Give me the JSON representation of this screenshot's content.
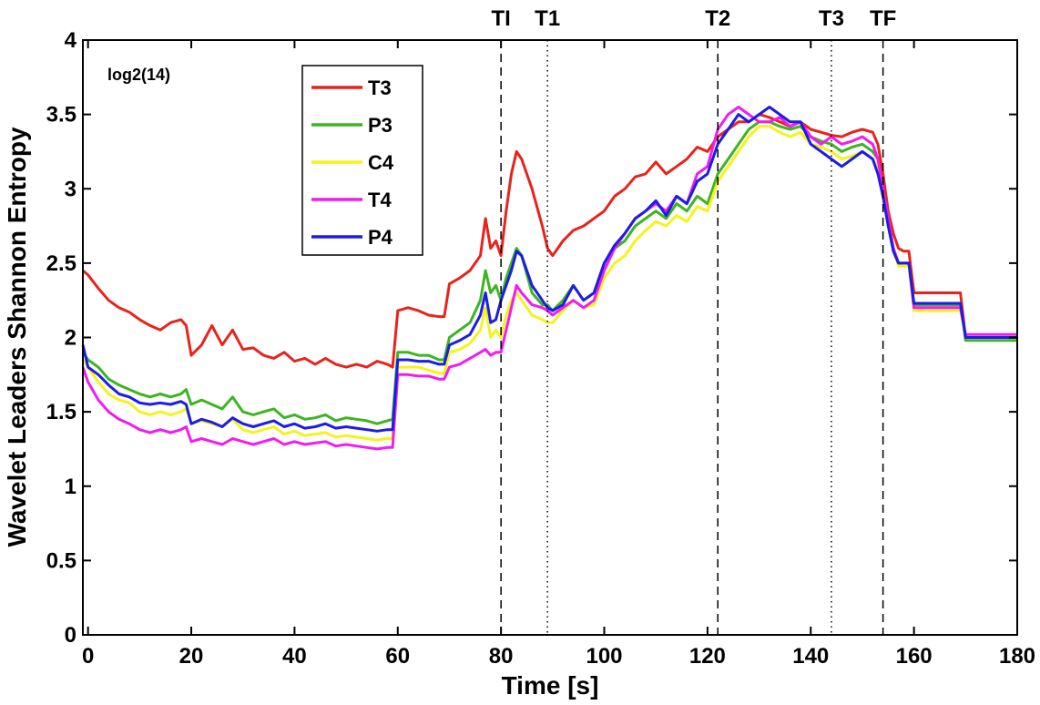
{
  "chart_data": {
    "type": "line",
    "xlabel": "Time [s]",
    "ylabel": "Wavelet Leaders Shannon Entropy",
    "xlim": [
      -1,
      180
    ],
    "ylim": [
      0,
      4
    ],
    "xticks": [
      0,
      20,
      40,
      60,
      80,
      100,
      120,
      140,
      160,
      180
    ],
    "yticks": [
      0,
      0.5,
      1,
      1.5,
      2,
      2.5,
      3,
      3.5,
      4
    ],
    "grid": false,
    "legend_position": "top-left",
    "annotation": "log2(14)",
    "vertical_markers": [
      {
        "label": "TI",
        "x": 80,
        "style": "dashed"
      },
      {
        "label": "T1",
        "x": 89,
        "style": "dotted"
      },
      {
        "label": "T2",
        "x": 122,
        "style": "dashed"
      },
      {
        "label": "T3",
        "x": 144,
        "style": "dotted"
      },
      {
        "label": "TF",
        "x": 154,
        "style": "dashed"
      }
    ],
    "series": [
      {
        "name": "T3",
        "color": "#e8231c",
        "x": [
          -1,
          0,
          2,
          4,
          6,
          8,
          10,
          12,
          14,
          16,
          18,
          19,
          20,
          22,
          24,
          26,
          28,
          30,
          32,
          34,
          36,
          38,
          40,
          42,
          44,
          46,
          48,
          50,
          52,
          54,
          56,
          58,
          59,
          60,
          62,
          64,
          66,
          68,
          69,
          70,
          72,
          74,
          76,
          77,
          78,
          79,
          80,
          81,
          82,
          83,
          84,
          86,
          88,
          89,
          90,
          92,
          94,
          96,
          98,
          100,
          102,
          104,
          106,
          108,
          110,
          112,
          114,
          116,
          118,
          120,
          122,
          124,
          126,
          128,
          130,
          132,
          134,
          136,
          138,
          140,
          142,
          144,
          146,
          148,
          150,
          152,
          153,
          154,
          155,
          156,
          157,
          158,
          159,
          160,
          162,
          164,
          166,
          168,
          169,
          170,
          172,
          174,
          176,
          178,
          180
        ],
        "y": [
          2.45,
          2.42,
          2.33,
          2.25,
          2.2,
          2.17,
          2.12,
          2.08,
          2.05,
          2.1,
          2.12,
          2.08,
          1.88,
          1.95,
          2.08,
          1.95,
          2.05,
          1.92,
          1.93,
          1.88,
          1.86,
          1.9,
          1.84,
          1.86,
          1.82,
          1.86,
          1.82,
          1.8,
          1.82,
          1.8,
          1.84,
          1.82,
          1.8,
          2.18,
          2.2,
          2.18,
          2.15,
          2.14,
          2.14,
          2.36,
          2.4,
          2.45,
          2.55,
          2.8,
          2.6,
          2.65,
          2.55,
          2.85,
          3.1,
          3.25,
          3.2,
          3.0,
          2.75,
          2.6,
          2.55,
          2.65,
          2.72,
          2.75,
          2.8,
          2.85,
          2.95,
          3.0,
          3.08,
          3.1,
          3.18,
          3.1,
          3.15,
          3.2,
          3.28,
          3.25,
          3.35,
          3.4,
          3.45,
          3.45,
          3.5,
          3.48,
          3.45,
          3.42,
          3.45,
          3.4,
          3.38,
          3.36,
          3.35,
          3.38,
          3.4,
          3.38,
          3.3,
          3.1,
          2.85,
          2.7,
          2.6,
          2.58,
          2.58,
          2.3,
          2.3,
          2.3,
          2.3,
          2.3,
          2.3,
          2.0,
          2.0,
          2.0,
          2.0,
          2.0,
          2.0
        ]
      },
      {
        "name": "P3",
        "color": "#3cb521",
        "x": [
          -1,
          0,
          2,
          4,
          6,
          8,
          10,
          12,
          14,
          16,
          18,
          19,
          20,
          22,
          24,
          26,
          28,
          30,
          32,
          34,
          36,
          38,
          40,
          42,
          44,
          46,
          48,
          50,
          52,
          54,
          56,
          58,
          59,
          60,
          62,
          64,
          66,
          68,
          69,
          70,
          72,
          74,
          76,
          77,
          78,
          79,
          80,
          81,
          82,
          83,
          84,
          86,
          88,
          89,
          90,
          92,
          94,
          96,
          98,
          100,
          102,
          104,
          106,
          108,
          110,
          112,
          114,
          116,
          118,
          120,
          122,
          124,
          126,
          128,
          130,
          132,
          134,
          136,
          138,
          140,
          142,
          144,
          146,
          148,
          150,
          152,
          153,
          154,
          155,
          156,
          157,
          158,
          159,
          160,
          162,
          164,
          166,
          168,
          169,
          170,
          172,
          174,
          176,
          178,
          180
        ],
        "y": [
          1.9,
          1.85,
          1.8,
          1.72,
          1.68,
          1.65,
          1.62,
          1.6,
          1.62,
          1.6,
          1.62,
          1.65,
          1.55,
          1.58,
          1.55,
          1.52,
          1.6,
          1.5,
          1.48,
          1.5,
          1.52,
          1.46,
          1.48,
          1.45,
          1.46,
          1.48,
          1.44,
          1.46,
          1.45,
          1.44,
          1.42,
          1.44,
          1.45,
          1.9,
          1.9,
          1.88,
          1.88,
          1.85,
          1.85,
          2.0,
          2.05,
          2.1,
          2.25,
          2.45,
          2.3,
          2.35,
          2.25,
          2.4,
          2.5,
          2.6,
          2.55,
          2.3,
          2.22,
          2.22,
          2.18,
          2.25,
          2.35,
          2.25,
          2.3,
          2.5,
          2.6,
          2.65,
          2.75,
          2.8,
          2.85,
          2.8,
          2.9,
          2.85,
          2.95,
          2.9,
          3.1,
          3.2,
          3.3,
          3.4,
          3.45,
          3.45,
          3.42,
          3.4,
          3.42,
          3.35,
          3.32,
          3.3,
          3.25,
          3.28,
          3.3,
          3.25,
          3.2,
          3.0,
          2.8,
          2.6,
          2.5,
          2.5,
          2.5,
          2.22,
          2.22,
          2.22,
          2.22,
          2.22,
          2.22,
          1.98,
          1.98,
          1.98,
          1.98,
          1.98,
          1.98
        ]
      },
      {
        "name": "C4",
        "color": "#f5f21c",
        "x": [
          -1,
          0,
          2,
          4,
          6,
          8,
          10,
          12,
          14,
          16,
          18,
          19,
          20,
          22,
          24,
          26,
          28,
          30,
          32,
          34,
          36,
          38,
          40,
          42,
          44,
          46,
          48,
          50,
          52,
          54,
          56,
          58,
          59,
          60,
          62,
          64,
          66,
          68,
          69,
          70,
          72,
          74,
          76,
          77,
          78,
          79,
          80,
          81,
          82,
          83,
          84,
          86,
          88,
          89,
          90,
          92,
          94,
          96,
          98,
          100,
          102,
          104,
          106,
          108,
          110,
          112,
          114,
          116,
          118,
          120,
          122,
          124,
          126,
          128,
          130,
          132,
          134,
          136,
          138,
          140,
          142,
          144,
          146,
          148,
          150,
          152,
          153,
          154,
          155,
          156,
          157,
          158,
          159,
          160,
          162,
          164,
          166,
          168,
          169,
          170,
          172,
          174,
          176,
          178,
          180
        ],
        "y": [
          1.85,
          1.8,
          1.7,
          1.62,
          1.58,
          1.56,
          1.5,
          1.48,
          1.5,
          1.48,
          1.5,
          1.52,
          1.42,
          1.44,
          1.42,
          1.4,
          1.45,
          1.38,
          1.36,
          1.38,
          1.4,
          1.35,
          1.37,
          1.34,
          1.35,
          1.36,
          1.33,
          1.34,
          1.33,
          1.32,
          1.31,
          1.32,
          1.32,
          1.8,
          1.8,
          1.8,
          1.78,
          1.76,
          1.76,
          1.9,
          1.92,
          1.96,
          2.05,
          2.2,
          2.0,
          2.05,
          2.0,
          2.15,
          2.25,
          2.3,
          2.25,
          2.15,
          2.12,
          2.1,
          2.1,
          2.18,
          2.25,
          2.2,
          2.22,
          2.4,
          2.5,
          2.55,
          2.65,
          2.72,
          2.78,
          2.75,
          2.82,
          2.78,
          2.88,
          2.85,
          3.05,
          3.15,
          3.25,
          3.35,
          3.42,
          3.42,
          3.38,
          3.35,
          3.38,
          3.3,
          3.28,
          3.25,
          3.2,
          3.22,
          3.25,
          3.2,
          3.15,
          2.95,
          2.75,
          2.58,
          2.48,
          2.48,
          2.48,
          2.18,
          2.18,
          2.18,
          2.18,
          2.18,
          2.18,
          2.0,
          2.0,
          2.0,
          2.0,
          2.0,
          2.0
        ]
      },
      {
        "name": "T4",
        "color": "#f01cf0",
        "x": [
          -1,
          0,
          2,
          4,
          6,
          8,
          10,
          12,
          14,
          16,
          18,
          19,
          20,
          22,
          24,
          26,
          28,
          30,
          32,
          34,
          36,
          38,
          40,
          42,
          44,
          46,
          48,
          50,
          52,
          54,
          56,
          58,
          59,
          60,
          62,
          64,
          66,
          68,
          69,
          70,
          72,
          74,
          76,
          77,
          78,
          79,
          80,
          81,
          82,
          83,
          84,
          86,
          88,
          89,
          90,
          92,
          94,
          96,
          98,
          100,
          102,
          104,
          106,
          108,
          110,
          112,
          114,
          116,
          118,
          120,
          122,
          124,
          126,
          128,
          130,
          132,
          134,
          136,
          138,
          140,
          142,
          144,
          146,
          148,
          150,
          152,
          153,
          154,
          155,
          156,
          157,
          158,
          159,
          160,
          162,
          164,
          166,
          168,
          169,
          170,
          172,
          174,
          176,
          178,
          180
        ],
        "y": [
          1.8,
          1.7,
          1.58,
          1.5,
          1.45,
          1.42,
          1.38,
          1.36,
          1.38,
          1.36,
          1.38,
          1.4,
          1.3,
          1.32,
          1.3,
          1.28,
          1.32,
          1.3,
          1.28,
          1.3,
          1.32,
          1.28,
          1.3,
          1.28,
          1.29,
          1.3,
          1.27,
          1.28,
          1.27,
          1.26,
          1.25,
          1.26,
          1.26,
          1.75,
          1.75,
          1.74,
          1.74,
          1.72,
          1.72,
          1.8,
          1.82,
          1.86,
          1.9,
          1.92,
          1.88,
          1.9,
          1.9,
          2.05,
          2.2,
          2.35,
          2.3,
          2.22,
          2.2,
          2.18,
          2.15,
          2.2,
          2.25,
          2.2,
          2.25,
          2.45,
          2.6,
          2.7,
          2.8,
          2.85,
          2.9,
          2.85,
          2.95,
          2.9,
          3.1,
          3.15,
          3.4,
          3.5,
          3.55,
          3.5,
          3.45,
          3.45,
          3.48,
          3.42,
          3.45,
          3.35,
          3.3,
          3.35,
          3.3,
          3.32,
          3.35,
          3.3,
          3.2,
          3.0,
          2.8,
          2.6,
          2.5,
          2.5,
          2.5,
          2.2,
          2.2,
          2.2,
          2.2,
          2.2,
          2.2,
          2.02,
          2.02,
          2.02,
          2.02,
          2.02,
          2.02
        ]
      },
      {
        "name": "P4",
        "color": "#1c1ce8",
        "x": [
          -1,
          0,
          2,
          4,
          6,
          8,
          10,
          12,
          14,
          16,
          18,
          19,
          20,
          22,
          24,
          26,
          28,
          30,
          32,
          34,
          36,
          38,
          40,
          42,
          44,
          46,
          48,
          50,
          52,
          54,
          56,
          58,
          59,
          60,
          62,
          64,
          66,
          68,
          69,
          70,
          72,
          74,
          76,
          77,
          78,
          79,
          80,
          81,
          82,
          83,
          84,
          86,
          88,
          89,
          90,
          92,
          94,
          96,
          98,
          100,
          102,
          104,
          106,
          108,
          110,
          112,
          114,
          116,
          118,
          120,
          122,
          124,
          126,
          128,
          130,
          132,
          134,
          136,
          138,
          140,
          142,
          144,
          146,
          148,
          150,
          152,
          153,
          154,
          155,
          156,
          157,
          158,
          159,
          160,
          162,
          164,
          166,
          168,
          169,
          170,
          172,
          174,
          176,
          178,
          180
        ],
        "y": [
          1.95,
          1.8,
          1.75,
          1.68,
          1.62,
          1.6,
          1.56,
          1.55,
          1.56,
          1.55,
          1.57,
          1.55,
          1.42,
          1.45,
          1.43,
          1.4,
          1.46,
          1.42,
          1.4,
          1.42,
          1.44,
          1.4,
          1.42,
          1.39,
          1.4,
          1.42,
          1.39,
          1.4,
          1.39,
          1.38,
          1.37,
          1.38,
          1.38,
          1.85,
          1.85,
          1.84,
          1.84,
          1.82,
          1.82,
          1.95,
          1.98,
          2.02,
          2.15,
          2.3,
          2.1,
          2.12,
          2.25,
          2.35,
          2.45,
          2.58,
          2.55,
          2.35,
          2.25,
          2.2,
          2.18,
          2.22,
          2.35,
          2.25,
          2.3,
          2.5,
          2.62,
          2.7,
          2.8,
          2.85,
          2.92,
          2.82,
          2.95,
          2.9,
          3.05,
          3.1,
          3.3,
          3.4,
          3.5,
          3.45,
          3.5,
          3.55,
          3.5,
          3.45,
          3.45,
          3.3,
          3.25,
          3.2,
          3.15,
          3.2,
          3.25,
          3.2,
          3.1,
          2.95,
          2.75,
          2.58,
          2.5,
          2.5,
          2.5,
          2.23,
          2.23,
          2.23,
          2.23,
          2.23,
          2.23,
          2.0,
          2.0,
          2.0,
          2.0,
          2.0,
          2.0
        ]
      }
    ]
  }
}
